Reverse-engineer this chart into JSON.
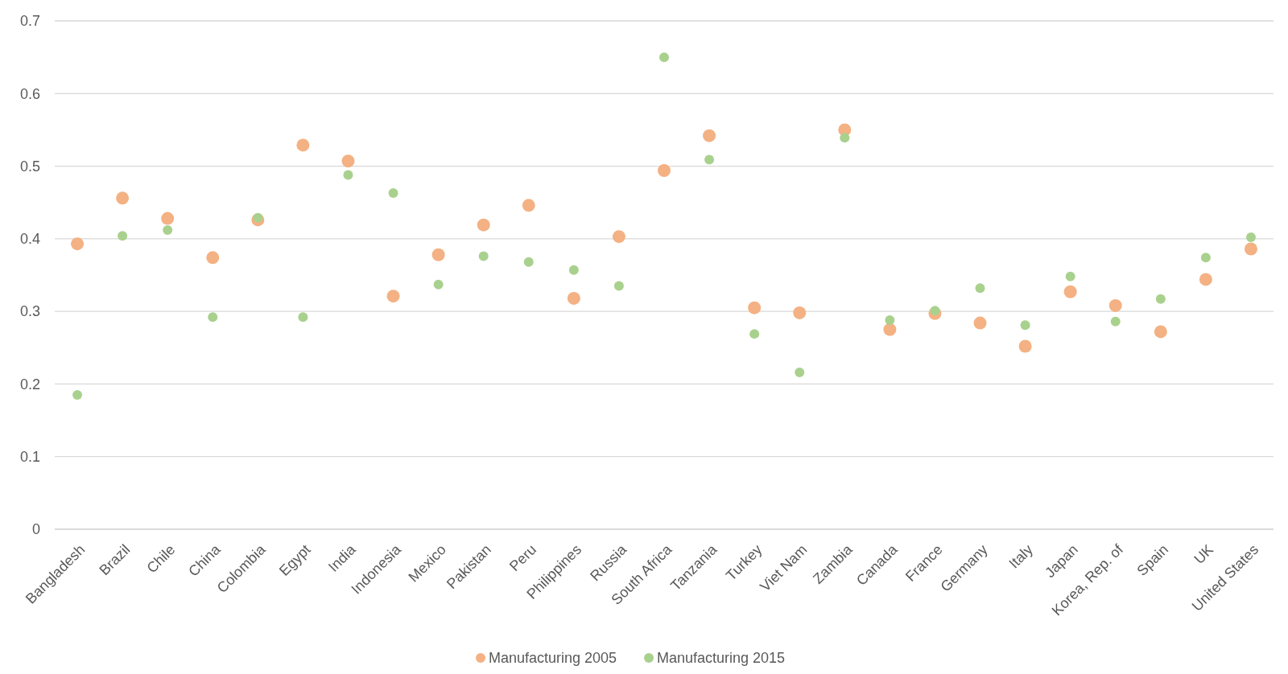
{
  "chart_data": {
    "type": "scatter",
    "categories": [
      "Bangladesh",
      "Brazil",
      "Chile",
      "China",
      "Colombia",
      "Egypt",
      "India",
      "Indonesia",
      "Mexico",
      "Pakistan",
      "Peru",
      "Philippines",
      "Russia",
      "South Africa",
      "Tanzania",
      "Turkey",
      "Viet Nam",
      "Zambia",
      "Canada",
      "France",
      "Germany",
      "Italy",
      "Japan",
      "Korea, Rep. of",
      "Spain",
      "UK",
      "United States"
    ],
    "series": [
      {
        "name": "Manufacturing 2005",
        "color": "#f4b183",
        "values": [
          0.393,
          0.456,
          0.428,
          0.374,
          0.426,
          0.529,
          0.507,
          0.321,
          0.378,
          0.419,
          0.446,
          0.318,
          0.403,
          0.494,
          0.542,
          0.305,
          0.298,
          0.55,
          0.275,
          0.297,
          0.284,
          0.252,
          0.327,
          0.308,
          0.272,
          0.344,
          0.386
        ]
      },
      {
        "name": "Manufacturing 2015",
        "color": "#a9d18e",
        "values": [
          0.185,
          0.404,
          0.412,
          0.292,
          0.429,
          0.292,
          0.488,
          0.463,
          0.337,
          0.376,
          0.368,
          0.357,
          0.335,
          0.65,
          0.509,
          0.269,
          0.216,
          0.539,
          0.288,
          0.301,
          0.332,
          0.281,
          0.348,
          0.286,
          0.317,
          0.374,
          0.402
        ]
      }
    ],
    "ylim": [
      0,
      0.7
    ],
    "yticks": [
      0,
      0.1,
      0.2,
      0.3,
      0.4,
      0.5,
      0.6,
      0.7
    ],
    "grid": "y",
    "legend": "bottom",
    "marker": "circle"
  }
}
